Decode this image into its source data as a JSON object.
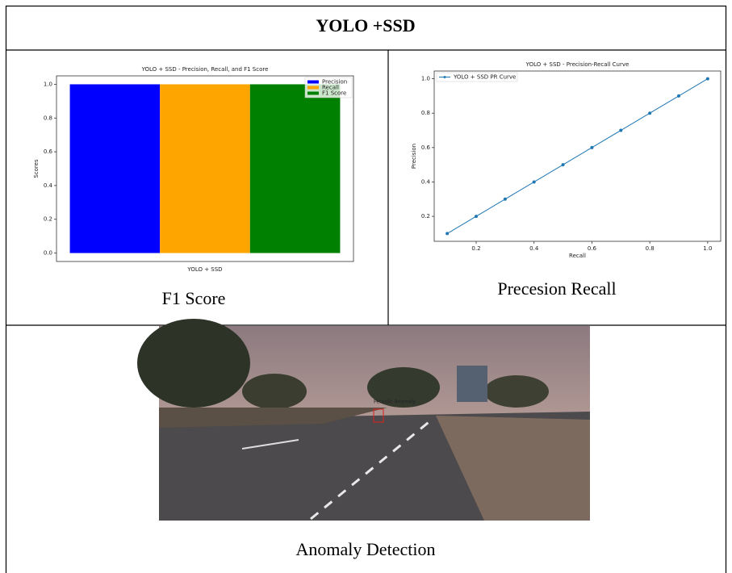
{
  "header": {
    "title": "YOLO +SSD"
  },
  "chart_data": [
    {
      "type": "bar",
      "title": "YOLO + SSD - Precision, Recall, and F1 Score",
      "categories": [
        "YOLO + SSD"
      ],
      "ylabel": "Scores",
      "series": [
        {
          "name": "Precision",
          "color": "#0000ff",
          "values": [
            1.0
          ]
        },
        {
          "name": "Recall",
          "color": "#ffa500",
          "values": [
            1.0
          ]
        },
        {
          "name": "F1 Score",
          "color": "#008000",
          "values": [
            1.0
          ]
        }
      ],
      "ylim": [
        -0.05,
        1.05
      ],
      "yticks": [
        {
          "value": 0,
          "label": "0.0"
        },
        0.2,
        0.4,
        0.6,
        0.8,
        {
          "value": 1,
          "label": "1.0"
        }
      ],
      "legend": "upper right"
    },
    {
      "type": "line",
      "title": "YOLO + SSD - Precision-Recall Curve",
      "xlabel": "Recall",
      "ylabel": "Precision",
      "x": [
        0.1,
        0.2,
        0.3,
        0.4,
        0.5,
        0.6,
        0.7,
        0.8,
        0.9,
        1.0
      ],
      "series": [
        {
          "name": "YOLO + SSD PR Curve",
          "color": "#1f77b4",
          "values": [
            0.1,
            0.2,
            0.3,
            0.4,
            0.5,
            0.6,
            0.7,
            0.8,
            0.9,
            1.0
          ]
        }
      ],
      "xlim": [
        0.055,
        1.045
      ],
      "ylim": [
        0.055,
        1.045
      ],
      "xticks": [
        0.2,
        0.4,
        0.6,
        0.8,
        {
          "value": 1,
          "label": "1.0"
        }
      ],
      "yticks": [
        0.2,
        0.4,
        0.6,
        0.8,
        {
          "value": 1,
          "label": "1.0"
        }
      ],
      "legend": "upper left"
    }
  ],
  "captions": [
    "F1 Score",
    "Precesion Recall",
    "Anomaly Detection"
  ],
  "image": {
    "detection_label": "Periodic Anomaly"
  }
}
